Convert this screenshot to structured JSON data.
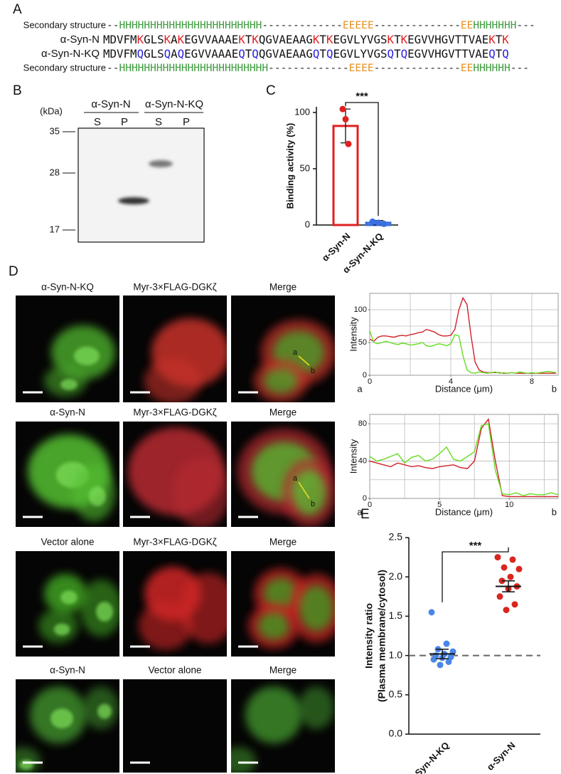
{
  "panel_labels": [
    "A",
    "B",
    "C",
    "D",
    "E"
  ],
  "sequence_panel": {
    "structure_label": "Secondary structure",
    "structure_colors": {
      "H": "#3c9a3c",
      "E": "#e8901c",
      "-": "#222222"
    },
    "structure_top": "--HHHHHHHHHHHHHHHHHHHHHHH-------------EEEEE--------------EEHHHHHHH---",
    "structure_bottom": "--HHHHHHHHHHHHHHHHHHHHHHHH-------------EEEE--------------EEHHHHHH---",
    "sequences": [
      {
        "name": "α-Syn-N",
        "color": "#e0201f",
        "segments": [
          "MDVFM",
          "K",
          "GLS",
          "K",
          "A",
          "K",
          "EGVVAAAE",
          "K",
          "T",
          "K",
          "QGVAEAAG",
          "K",
          "T",
          "K",
          "EGVLYVGS",
          "K",
          "T",
          "K",
          "EGVVHGVTTVAE",
          "K",
          "T",
          "K"
        ]
      },
      {
        "name": "α-Syn-N-KQ",
        "color": "#2a22e0",
        "segments": [
          "MDVFM",
          "Q",
          "GLS",
          "Q",
          "A",
          "Q",
          "EGVVAAAE",
          "Q",
          "T",
          "Q",
          "QGVAEAAG",
          "Q",
          "T",
          "Q",
          "EGVLYVGS",
          "Q",
          "T",
          "Q",
          "EGVVHGVTTVAE",
          "Q",
          "T",
          "Q"
        ]
      }
    ]
  },
  "blot": {
    "unit": "(kDa)",
    "markers": [
      35,
      28,
      17
    ],
    "lanes": [
      "α-Syn-N",
      "α-Syn-N-KQ"
    ],
    "lane_colors": [
      "#e0201f",
      "#2a22e0"
    ],
    "fractions": [
      "S",
      "P",
      "S",
      "P"
    ]
  },
  "microscopy": {
    "rows": [
      [
        "α-Syn-N-KQ",
        "Myr-3×FLAG-DGKζ",
        "Merge"
      ],
      [
        "α-Syn-N",
        "Myr-3×FLAG-DGKζ",
        "Merge"
      ],
      [
        "Vector alone",
        "Myr-3×FLAG-DGKζ",
        "Merge"
      ],
      [
        "α-Syn-N",
        "Vector alone",
        "Merge"
      ]
    ],
    "line_ends": [
      "a",
      "b"
    ]
  },
  "chart_data": [
    {
      "type": "bar",
      "categories": [
        "α-Syn-N",
        "α-Syn-N-KQ"
      ],
      "values": [
        88,
        2
      ],
      "errors": [
        15,
        2
      ],
      "points": [
        [
          103,
          94,
          72
        ],
        [
          3,
          2,
          1
        ]
      ],
      "colors": [
        "#e0201f",
        "#3a6fe0"
      ],
      "y_label": "Binding activity (%)",
      "ylim": [
        0,
        105
      ],
      "yticks": [
        0,
        50,
        100
      ],
      "annotation": "***"
    },
    {
      "type": "line",
      "x": [
        0,
        0.2,
        0.4,
        0.6,
        0.8,
        1,
        1.2,
        1.4,
        1.6,
        1.8,
        2,
        2.2,
        2.4,
        2.6,
        2.8,
        3,
        3.2,
        3.4,
        3.6,
        3.8,
        4,
        4.2,
        4.4,
        4.6,
        4.8,
        5,
        5.2,
        5.4,
        5.6,
        5.8,
        6,
        6.2,
        6.4,
        6.6,
        6.8,
        7,
        7.2,
        7.4,
        7.6,
        7.8,
        8,
        8.2,
        8.4,
        8.6,
        8.8,
        9,
        9.2
      ],
      "series": [
        {
          "color": "#d0202a",
          "values": [
            55,
            52,
            58,
            60,
            60,
            59,
            58,
            60,
            61,
            60,
            62,
            63,
            65,
            66,
            70,
            68,
            66,
            62,
            60,
            60,
            61,
            70,
            100,
            118,
            108,
            60,
            20,
            8,
            5,
            4,
            4,
            4,
            4,
            3,
            3,
            4,
            3,
            3,
            3,
            3,
            3,
            3,
            3,
            3,
            3,
            3,
            3
          ]
        },
        {
          "color": "#66dd22",
          "values": [
            68,
            50,
            48,
            50,
            52,
            50,
            48,
            47,
            49,
            48,
            46,
            47,
            48,
            50,
            45,
            44,
            46,
            48,
            47,
            45,
            48,
            62,
            60,
            30,
            8,
            4,
            3,
            5,
            4,
            3,
            4,
            5,
            3,
            4,
            3,
            4,
            3,
            5,
            4,
            3,
            4,
            3,
            4,
            5,
            6,
            5,
            4
          ]
        }
      ],
      "x_label": "Distance (μm)",
      "y_label": "Intensity",
      "x_end_labels": [
        "a",
        "b"
      ],
      "xlim": [
        0,
        9.3
      ],
      "ylim": [
        0,
        125
      ],
      "xticks": [
        0,
        4,
        8
      ],
      "yticks": [
        0,
        50,
        100
      ],
      "xgrid": [
        2,
        4,
        6,
        8
      ],
      "ygrid": [
        25,
        50,
        75,
        100
      ]
    },
    {
      "type": "line",
      "x": [
        0,
        0.5,
        1,
        1.5,
        2,
        2.5,
        3,
        3.5,
        4,
        4.5,
        5,
        5.5,
        6,
        6.5,
        7,
        7.5,
        8,
        8.5,
        9,
        9.5,
        10,
        10.5,
        11,
        11.5,
        12,
        12.5,
        13,
        13.5
      ],
      "series": [
        {
          "color": "#d0202a",
          "values": [
            40,
            38,
            36,
            34,
            38,
            36,
            34,
            35,
            33,
            32,
            34,
            35,
            36,
            33,
            32,
            40,
            75,
            85,
            40,
            3,
            2,
            2,
            2,
            2,
            2,
            2,
            2,
            2
          ]
        },
        {
          "color": "#66dd22",
          "values": [
            45,
            40,
            42,
            45,
            48,
            38,
            44,
            46,
            40,
            42,
            48,
            55,
            42,
            40,
            45,
            50,
            78,
            80,
            30,
            5,
            4,
            6,
            3,
            5,
            4,
            4,
            6,
            4
          ]
        }
      ],
      "x_label": "Distance (μm)",
      "y_label": "Intensity",
      "x_end_labels": [
        "a",
        "b"
      ],
      "xlim": [
        0,
        13.5
      ],
      "ylim": [
        0,
        90
      ],
      "xticks": [
        0,
        5,
        10
      ],
      "yticks": [
        0,
        40,
        80
      ],
      "xgrid": [
        2.5,
        5,
        7.5,
        10,
        12.5
      ],
      "ygrid": [
        20,
        40,
        60,
        80
      ]
    },
    {
      "type": "scatter",
      "categories": [
        "α-Syn-N-KQ",
        "α-Syn-N"
      ],
      "points": [
        [
          1.55,
          1.15,
          1.08,
          1.05,
          1.02,
          1.0,
          0.98,
          0.97,
          0.95,
          0.92,
          0.88
        ],
        [
          2.25,
          2.22,
          2.12,
          2.1,
          2.0,
          1.95,
          1.88,
          1.85,
          1.75,
          1.65,
          1.58
        ]
      ],
      "means": [
        1.02,
        1.88
      ],
      "errors": [
        0.06,
        0.07
      ],
      "colors": [
        "#4a86e8",
        "#d8261f"
      ],
      "y_label": [
        "Intensity ratio",
        "(Plasma membrane/cytosol)"
      ],
      "ylim": [
        0,
        2.5
      ],
      "yticks": [
        {
          "value": 0,
          "label": "0.0"
        },
        0.5,
        {
          "value": 1,
          "label": "1.0"
        },
        1.5,
        {
          "value": 2,
          "label": "2.0"
        },
        2.5
      ],
      "reference_line": 1,
      "annotation": "***"
    }
  ]
}
